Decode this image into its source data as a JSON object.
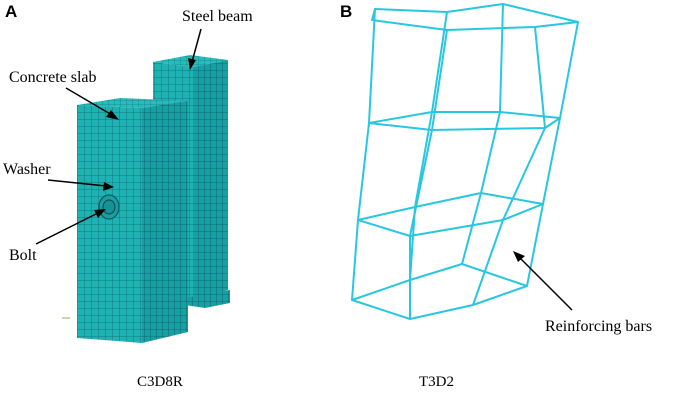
{
  "panel_a": {
    "letter": "A",
    "labels": {
      "steel_beam": "Steel beam",
      "concrete_slab": "Concrete slab",
      "washer": "Washer",
      "bolt": "Bolt"
    },
    "caption": "C3D8R"
  },
  "panel_b": {
    "letter": "B",
    "labels": {
      "reinforcing_bars": "Reinforcing bars"
    },
    "caption": "T3D2"
  },
  "colors": {
    "mesh_fill": "#1fb2b2",
    "mesh_line": "#0a5f64",
    "rebar": "#29c6e0",
    "text": "#000000"
  }
}
